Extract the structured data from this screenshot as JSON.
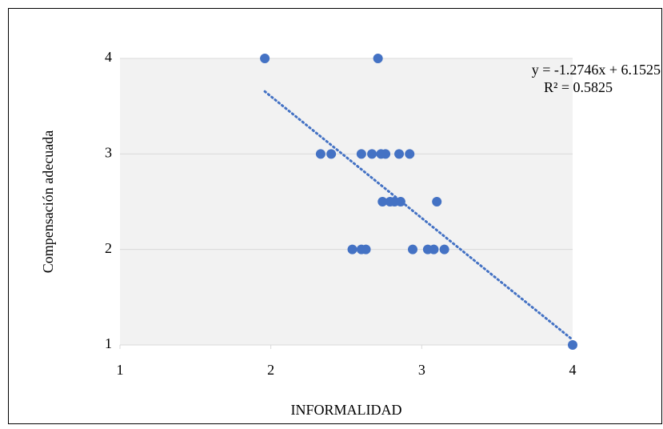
{
  "chart_data": {
    "type": "scatter",
    "x_label": "INFORMALIDAD",
    "y_label": "Compensación adecuada",
    "color": "#4472c4",
    "x": [
      1.96,
      2.71,
      2.33,
      2.4,
      2.6,
      2.67,
      2.73,
      2.76,
      2.85,
      2.92,
      2.74,
      2.79,
      2.82,
      2.86,
      3.1,
      2.54,
      2.6,
      2.63,
      2.94,
      3.04,
      3.08,
      3.15,
      4.0
    ],
    "values": [
      4,
      4,
      3,
      3,
      3,
      3,
      3,
      3,
      3,
      3,
      2.5,
      2.5,
      2.5,
      2.5,
      2.5,
      2,
      2,
      2,
      2,
      2,
      2,
      2,
      1
    ],
    "xlim": [
      1,
      4
    ],
    "xticks": [
      1,
      2,
      3,
      4
    ],
    "ylim": [
      1,
      4
    ],
    "yticks": [
      1,
      2,
      3,
      4
    ],
    "grid": true,
    "trendline": {
      "slope": -1.2746,
      "intercept": 6.1525,
      "label": "y = -1.2746x + 6.1525",
      "r2_label": "R² = 0.5825"
    }
  }
}
